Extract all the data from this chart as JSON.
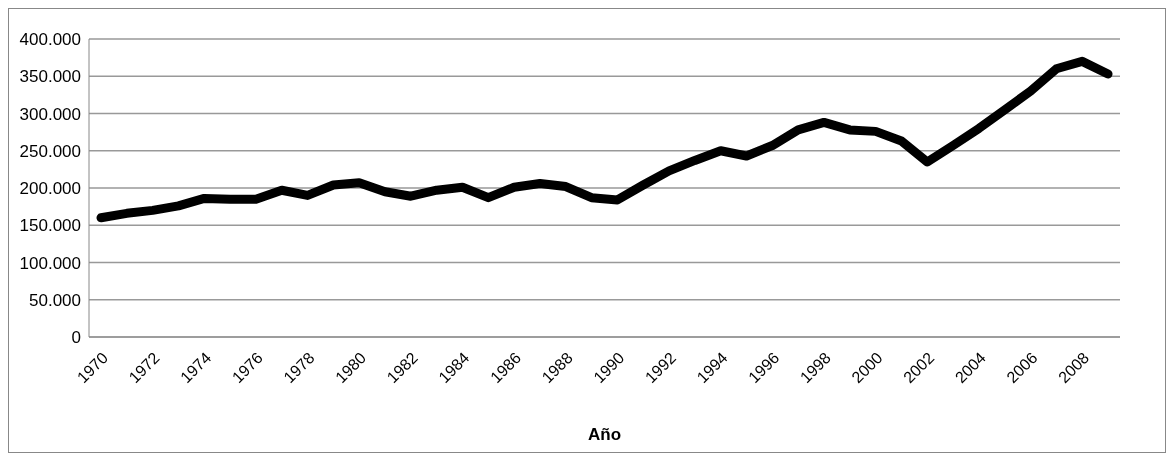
{
  "chart_data": {
    "type": "line",
    "xlabel": "Año",
    "categories": [
      "1970",
      null,
      "1972",
      null,
      "1974",
      null,
      "1976",
      null,
      "1978",
      null,
      "1980",
      null,
      "1982",
      null,
      "1984",
      null,
      "1986",
      null,
      "1988",
      null,
      "1990",
      null,
      "1992",
      null,
      "1994",
      null,
      "1996",
      null,
      "1998",
      null,
      "2000",
      null,
      "2002",
      null,
      "2004",
      null,
      "2006",
      null,
      "2008",
      null
    ],
    "series": [
      {
        "color": "#000000",
        "values": [
          160000,
          166000,
          170000,
          176000,
          186000,
          185000,
          185000,
          197000,
          190000,
          204000,
          207000,
          195000,
          189000,
          197000,
          201000,
          187000,
          201000,
          206000,
          202000,
          187000,
          184000,
          204000,
          223000,
          237000,
          250000,
          243000,
          257000,
          278000,
          288000,
          278000,
          276000,
          263000,
          235000,
          257000,
          280000,
          305000,
          330000,
          360000,
          370000,
          353000
        ]
      }
    ],
    "ylim": [
      0,
      400000
    ],
    "yticks": [
      {
        "value": 0,
        "label": "0"
      },
      {
        "value": 50000,
        "label": "50.000"
      },
      {
        "value": 100000,
        "label": "100.000"
      },
      {
        "value": 150000,
        "label": "150.000"
      },
      {
        "value": 200000,
        "label": "200.000"
      },
      {
        "value": 250000,
        "label": "250.000"
      },
      {
        "value": 300000,
        "label": "300.000"
      },
      {
        "value": 350000,
        "label": "350.000"
      },
      {
        "value": 400000,
        "label": "400.000"
      }
    ],
    "grid": "y",
    "legend": false,
    "marker": "none",
    "line_style": "solid"
  }
}
